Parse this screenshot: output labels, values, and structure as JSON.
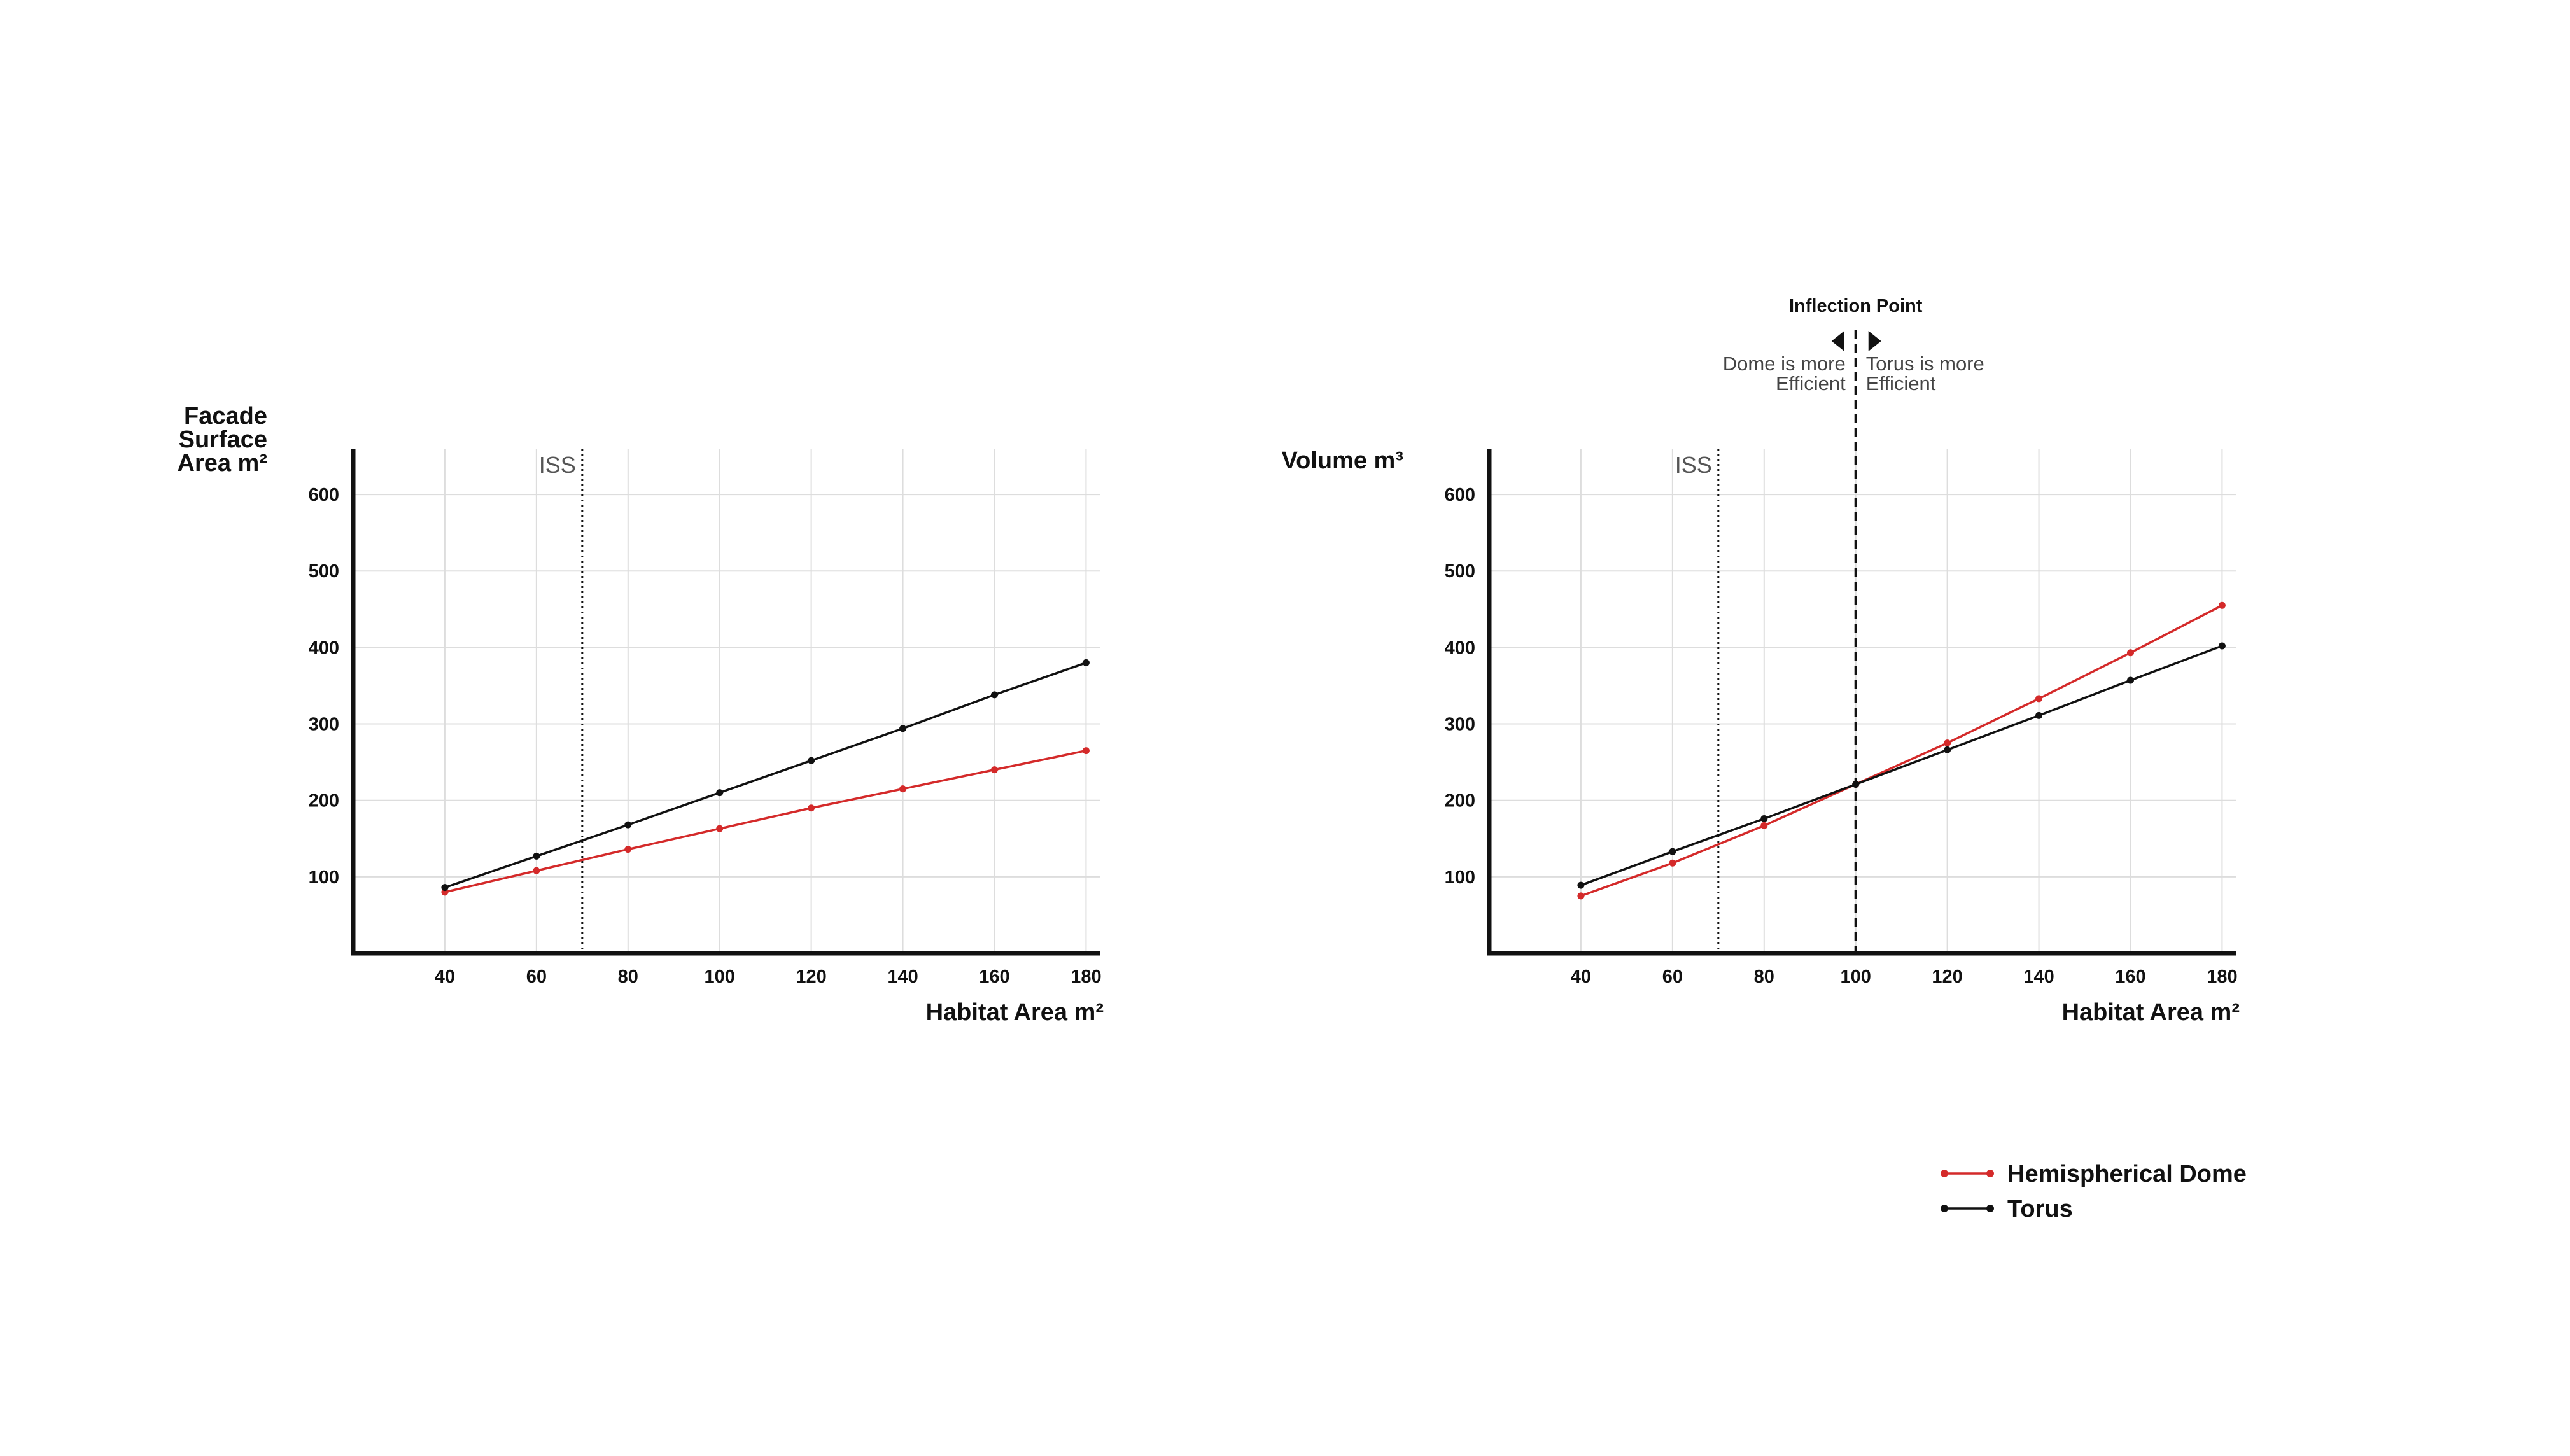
{
  "chart_data": [
    {
      "type": "line",
      "ylabel_lines": [
        "Facade",
        "Surface",
        "Area m²"
      ],
      "xlabel": "Habitat Area m²",
      "x": [
        40,
        60,
        80,
        100,
        120,
        140,
        160,
        180
      ],
      "x_ticks": [
        "40",
        "60",
        "80",
        "100",
        "120",
        "140",
        "160",
        "180"
      ],
      "y_ticks": [
        "100",
        "200",
        "300",
        "400",
        "500",
        "600"
      ],
      "xlim": [
        20,
        183
      ],
      "ylim": [
        0,
        660
      ],
      "grid": true,
      "reference_line": {
        "label": "ISS",
        "x": 70
      },
      "series": [
        {
          "name": "Hemispherical Dome",
          "color": "#d42a2a",
          "values": [
            80,
            108,
            136,
            163,
            190,
            215,
            240,
            265
          ]
        },
        {
          "name": "Torus",
          "color": "#111111",
          "values": [
            86,
            127,
            168,
            210,
            252,
            294,
            338,
            380
          ]
        }
      ]
    },
    {
      "type": "line",
      "ylabel_lines": [
        "Volume m³"
      ],
      "xlabel": "Habitat Area m²",
      "x": [
        40,
        60,
        80,
        100,
        120,
        140,
        160,
        180
      ],
      "x_ticks": [
        "40",
        "60",
        "80",
        "100",
        "120",
        "140",
        "160",
        "180"
      ],
      "y_ticks": [
        "100",
        "200",
        "300",
        "400",
        "500",
        "600"
      ],
      "xlim": [
        20,
        183
      ],
      "ylim": [
        0,
        660
      ],
      "grid": true,
      "reference_line": {
        "label": "ISS",
        "x": 70
      },
      "inflection": {
        "title": "Inflection Point",
        "x": 100,
        "left_note": [
          "Dome is more",
          "Efficient"
        ],
        "right_note": [
          "Torus is more",
          "Efficient"
        ]
      },
      "series": [
        {
          "name": "Hemispherical Dome",
          "color": "#d42a2a",
          "values": [
            75,
            118,
            167,
            221,
            275,
            333,
            393,
            455
          ]
        },
        {
          "name": "Torus",
          "color": "#111111",
          "values": [
            89,
            133,
            176,
            221,
            266,
            311,
            357,
            402
          ]
        }
      ]
    }
  ],
  "legend": {
    "placement": "bottom-right",
    "items": [
      {
        "label": "Hemispherical Dome",
        "color": "#d42a2a"
      },
      {
        "label": "Torus",
        "color": "#111111"
      }
    ]
  }
}
